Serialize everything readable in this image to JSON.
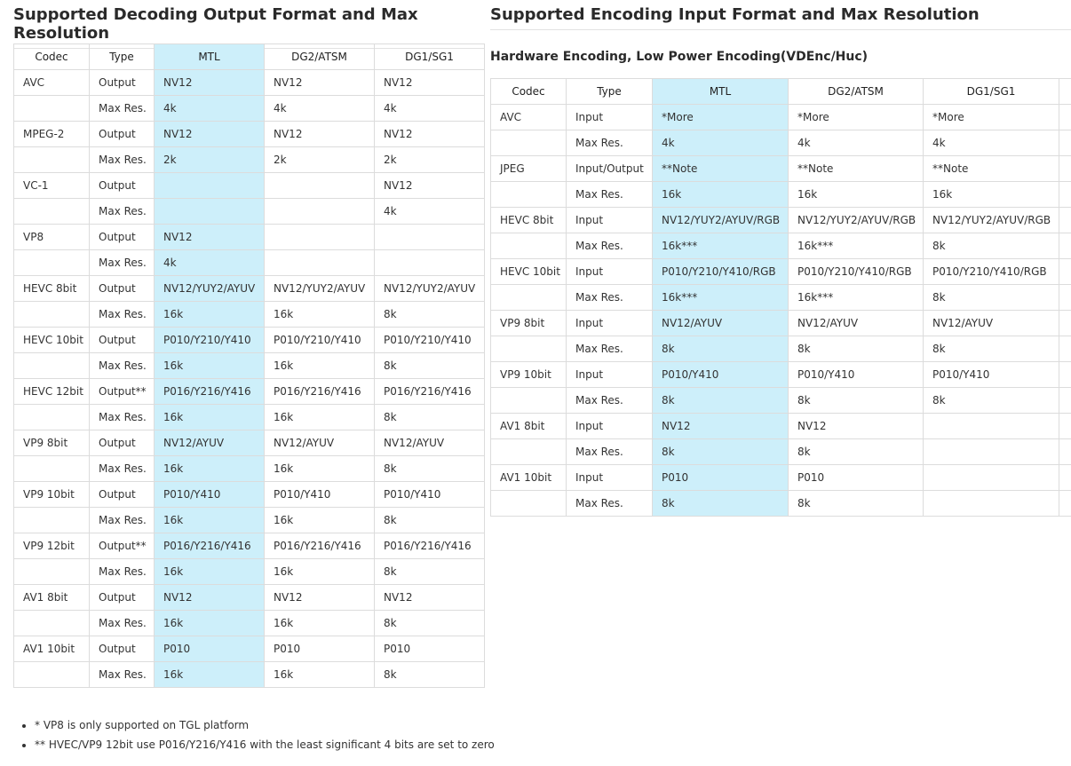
{
  "left": {
    "title": "Supported Decoding Output Format and Max Resolution",
    "table": {
      "header": [
        "Codec",
        "Type",
        "MTL",
        "DG2/ATSM",
        "DG1/SG1"
      ],
      "rows": [
        [
          "AVC",
          "Output",
          "NV12",
          "NV12",
          "NV12"
        ],
        [
          null,
          "Max Res.",
          "4k",
          "4k",
          "4k"
        ],
        [
          "MPEG-2",
          "Output",
          "NV12",
          "NV12",
          "NV12"
        ],
        [
          null,
          "Max Res.",
          "2k",
          "2k",
          "2k"
        ],
        [
          "VC-1",
          "Output",
          null,
          null,
          "NV12"
        ],
        [
          null,
          "Max Res.",
          null,
          null,
          "4k"
        ],
        [
          "VP8",
          "Output",
          "NV12",
          null,
          null
        ],
        [
          null,
          "Max Res.",
          "4k",
          null,
          null
        ],
        [
          "HEVC 8bit",
          "Output",
          "NV12/YUY2/AYUV",
          "NV12/YUY2/AYUV",
          "NV12/YUY2/AYUV"
        ],
        [
          null,
          "Max Res.",
          "16k",
          "16k",
          "8k"
        ],
        [
          "HEVC 10bit",
          "Output",
          "P010/Y210/Y410",
          "P010/Y210/Y410",
          "P010/Y210/Y410"
        ],
        [
          null,
          "Max Res.",
          "16k",
          "16k",
          "8k"
        ],
        [
          "HEVC 12bit",
          "Output**",
          "P016/Y216/Y416",
          "P016/Y216/Y416",
          "P016/Y216/Y416"
        ],
        [
          null,
          "Max Res.",
          "16k",
          "16k",
          "8k"
        ],
        [
          "VP9 8bit",
          "Output",
          "NV12/AYUV",
          "NV12/AYUV",
          "NV12/AYUV"
        ],
        [
          null,
          "Max Res.",
          "16k",
          "16k",
          "8k"
        ],
        [
          "VP9 10bit",
          "Output",
          "P010/Y410",
          "P010/Y410",
          "P010/Y410"
        ],
        [
          null,
          "Max Res.",
          "16k",
          "16k",
          "8k"
        ],
        [
          "VP9 12bit",
          "Output**",
          "P016/Y216/Y416",
          "P016/Y216/Y416",
          "P016/Y216/Y416"
        ],
        [
          null,
          "Max Res.",
          "16k",
          "16k",
          "8k"
        ],
        [
          "AV1 8bit",
          "Output",
          "NV12",
          "NV12",
          "NV12"
        ],
        [
          null,
          "Max Res.",
          "16k",
          "16k",
          "8k"
        ],
        [
          "AV1 10bit",
          "Output",
          "P010",
          "P010",
          "P010"
        ],
        [
          null,
          "Max Res.",
          "16k",
          "16k",
          "8k"
        ]
      ]
    },
    "notes": [
      "* VP8 is only supported on TGL platform",
      "** HVEC/VP9 12bit use P016/Y216/Y416 with the least significant 4 bits are set to zero"
    ]
  },
  "right": {
    "title": "Supported Encoding Input Format and Max Resolution",
    "subtitle": "Hardware Encoding, Low Power Encoding(VDEnc/Huc)",
    "table": {
      "header": [
        "Codec",
        "Type",
        "MTL",
        "DG2/ATSM",
        "DG1/SG1"
      ],
      "rows": [
        [
          "AVC",
          "Input",
          "*More",
          "*More",
          "*More"
        ],
        [
          null,
          "Max Res.",
          "4k",
          "4k",
          "4k"
        ],
        [
          "JPEG",
          "Input/Output",
          "**Note",
          "**Note",
          "**Note"
        ],
        [
          null,
          "Max Res.",
          "16k",
          "16k",
          "16k"
        ],
        [
          "HEVC 8bit",
          "Input",
          "NV12/YUY2/AYUV/RGB",
          "NV12/YUY2/AYUV/RGB",
          "NV12/YUY2/AYUV/RGB"
        ],
        [
          null,
          "Max Res.",
          "16k***",
          "16k***",
          "8k"
        ],
        [
          "HEVC 10bit",
          "Input",
          "P010/Y210/Y410/RGB",
          "P010/Y210/Y410/RGB",
          "P010/Y210/Y410/RGB"
        ],
        [
          null,
          "Max Res.",
          "16k***",
          "16k***",
          "8k"
        ],
        [
          "VP9 8bit",
          "Input",
          "NV12/AYUV",
          "NV12/AYUV",
          "NV12/AYUV"
        ],
        [
          null,
          "Max Res.",
          "8k",
          "8k",
          "8k"
        ],
        [
          "VP9 10bit",
          "Input",
          "P010/Y410",
          "P010/Y410",
          "P010/Y410"
        ],
        [
          null,
          "Max Res.",
          "8k",
          "8k",
          "8k"
        ],
        [
          "AV1 8bit",
          "Input",
          "NV12",
          "NV12",
          null
        ],
        [
          null,
          "Max Res.",
          "8k",
          "8k",
          null
        ],
        [
          "AV1 10bit",
          "Input",
          "P010",
          "P010",
          null
        ],
        [
          null,
          "Max Res.",
          "8k",
          "8k",
          null
        ]
      ]
    }
  }
}
